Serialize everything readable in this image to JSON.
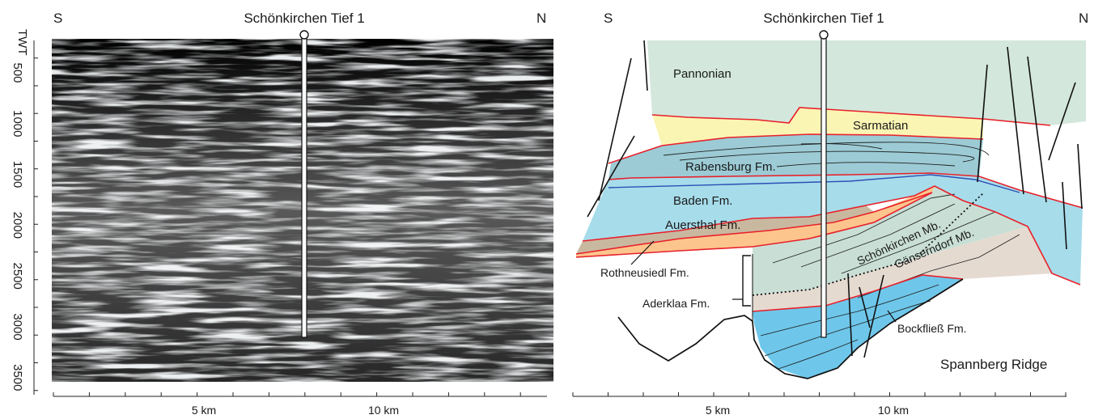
{
  "left_panel": {
    "south_label": "S",
    "north_label": "N",
    "well_name": "Schönkirchen Tief 1",
    "twt_axis_label": "TWT",
    "twt_ticks": [
      "500",
      "1000",
      "1500",
      "2000",
      "2500",
      "3000",
      "3500"
    ],
    "distance_ticks": [
      "5 km",
      "10 km"
    ]
  },
  "right_panel": {
    "south_label": "S",
    "north_label": "N",
    "well_name": "Schönkirchen Tief 1",
    "distance_ticks": [
      "5 km",
      "10 km"
    ],
    "units": {
      "pannonian": "Pannonian",
      "sarmatian": "Sarmatian",
      "rabensburg": "Rabensburg Fm.",
      "baden": "Baden Fm.",
      "auersthal": "Auersthal Fm.",
      "rothneusiedl": "Rothneusiedl Fm.",
      "aderklaa": "Aderklaa Fm.",
      "schoenkirchen_mb": "Schönkirchen Mb.",
      "gaenserndorf_mb": "Gänserndorf Mb.",
      "bockfliess": "Bockfließ Fm.",
      "spannberg": "Spannberg Ridge"
    }
  },
  "colors": {
    "pannonian": "#d3e7dc",
    "sarmatian": "#fbf5b4",
    "rabensburg": "#9ccbd5",
    "baden": "#a7dcea",
    "auersthal": "#c9b8a0",
    "rothneusiedl": "#fcc58d",
    "aderklaa": "#e5dad0",
    "bockfliess": "#6ec7ea",
    "schoenkirchen": "#c9dfd5",
    "boundary_red": "#e8202a",
    "boundary_blue": "#2b4fb5"
  }
}
